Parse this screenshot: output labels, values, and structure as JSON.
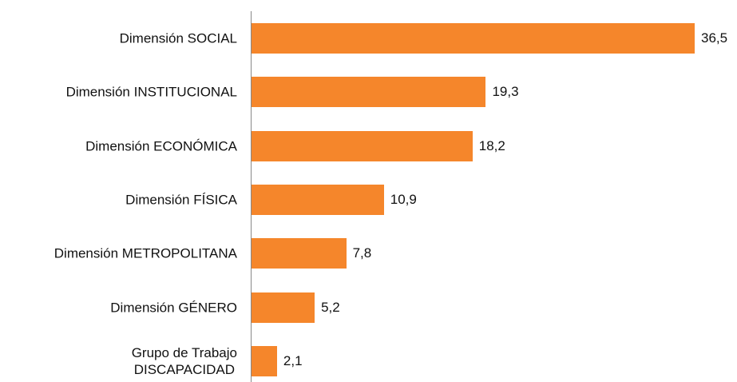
{
  "chart_data": {
    "type": "barh",
    "categories": [
      "Dimensión SOCIAL",
      "Dimensión INSTITUCIONAL",
      "Dimensión ECONÓMICA",
      "Dimensión FÍSICA",
      "Dimensión METROPOLITANA",
      "Dimensión GÉNERO",
      "Grupo de Trabajo\nDISCAPACIDAD"
    ],
    "values": [
      36.5,
      19.3,
      18.2,
      10.9,
      7.8,
      5.2,
      2.1
    ],
    "value_labels": [
      "36,5",
      "19,3",
      "18,2",
      "10,9",
      "7,8",
      "5,2",
      "2,1"
    ],
    "color": "#f5862b"
  }
}
